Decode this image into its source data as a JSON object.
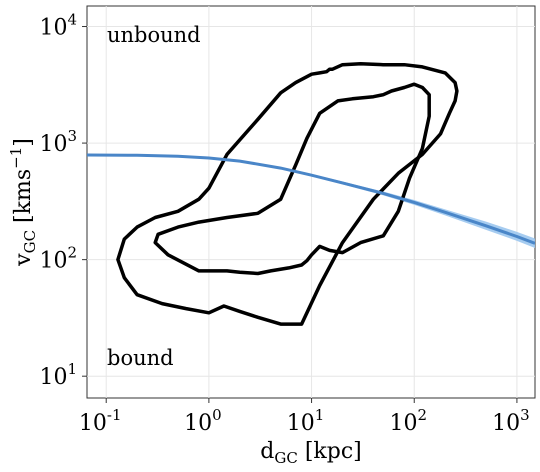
{
  "chart_data": {
    "type": "line",
    "xscale": "log",
    "yscale": "log",
    "xlim": [
      0.065,
      1500
    ],
    "ylim": [
      6.5,
      15000
    ],
    "x_ticks": [
      0.1,
      1,
      10,
      100,
      1000
    ],
    "y_ticks": [
      10,
      100,
      1000,
      10000
    ],
    "x_tick_labels": [
      {
        "base": "10",
        "exp": "-1"
      },
      {
        "base": "10",
        "exp": "0"
      },
      {
        "base": "10",
        "exp": "1"
      },
      {
        "base": "10",
        "exp": "2"
      },
      {
        "base": "10",
        "exp": "3"
      }
    ],
    "y_tick_labels": [
      {
        "base": "10",
        "exp": "1"
      },
      {
        "base": "10",
        "exp": "2"
      },
      {
        "base": "10",
        "exp": "3"
      },
      {
        "base": "10",
        "exp": "4"
      }
    ],
    "xlabel": {
      "main": "d",
      "sub": "GC",
      "rest": " [kpc]"
    },
    "ylabel": {
      "main": "v",
      "sub": "GC",
      "rest": " [kms",
      "sup": "−1",
      "end": "]"
    },
    "grid": true,
    "annotations": {
      "top_left": "unbound",
      "bottom_left": "bound"
    },
    "colors": {
      "contour": "#000000",
      "escape_line": "#4a86c8",
      "escape_band": "#9cc6ee",
      "grid": "#e6e6e6"
    },
    "escape_curve": {
      "x": [
        0.065,
        0.2,
        0.5,
        1,
        2,
        5,
        10,
        20,
        50,
        100,
        200,
        500,
        1000,
        1500
      ],
      "y": [
        790,
        785,
        770,
        745,
        700,
        610,
        530,
        455,
        370,
        310,
        255,
        195,
        158,
        138
      ],
      "y_low": [
        785,
        780,
        764,
        738,
        692,
        600,
        518,
        442,
        356,
        295,
        240,
        180,
        145,
        126
      ],
      "y_high": [
        795,
        790,
        776,
        752,
        708,
        620,
        542,
        468,
        384,
        325,
        270,
        212,
        173,
        152
      ]
    },
    "contours": [
      {
        "x": [
          1.0,
          0.6,
          0.35,
          0.2,
          0.15,
          0.13,
          0.15,
          0.2,
          0.3,
          0.5,
          0.8,
          1.0,
          1.5,
          3,
          5,
          7,
          10,
          12,
          14,
          15,
          16,
          20,
          30,
          50,
          80,
          120,
          180,
          200,
          250,
          260,
          250,
          220,
          180,
          120,
          70,
          40,
          20,
          12,
          8,
          5,
          3,
          2,
          1.4,
          1.0
        ],
        "y": [
          35,
          38,
          42,
          50,
          70,
          100,
          150,
          190,
          230,
          260,
          330,
          410,
          800,
          1600,
          2700,
          3300,
          3900,
          4000,
          4100,
          4300,
          4300,
          4700,
          4800,
          4700,
          4700,
          4500,
          4100,
          4000,
          3300,
          2800,
          2300,
          1800,
          1200,
          800,
          550,
          330,
          140,
          60,
          28,
          28,
          32,
          36,
          40,
          35
        ]
      },
      {
        "x": [
          1.5,
          0.8,
          0.4,
          0.3,
          0.32,
          0.5,
          0.8,
          1.5,
          3,
          5,
          7,
          9,
          12,
          18,
          25,
          40,
          50,
          60,
          80,
          100,
          120,
          140,
          140,
          120,
          90,
          70,
          50,
          30,
          20,
          15,
          12,
          10,
          9,
          8,
          6,
          4,
          3,
          2,
          1.5
        ],
        "y": [
          80,
          80,
          110,
          140,
          165,
          190,
          210,
          230,
          250,
          330,
          650,
          1100,
          1800,
          2300,
          2400,
          2500,
          2600,
          2800,
          3000,
          3200,
          3000,
          2600,
          1700,
          900,
          500,
          260,
          160,
          140,
          115,
          120,
          130,
          110,
          98,
          90,
          85,
          80,
          76,
          78,
          80
        ]
      }
    ]
  }
}
